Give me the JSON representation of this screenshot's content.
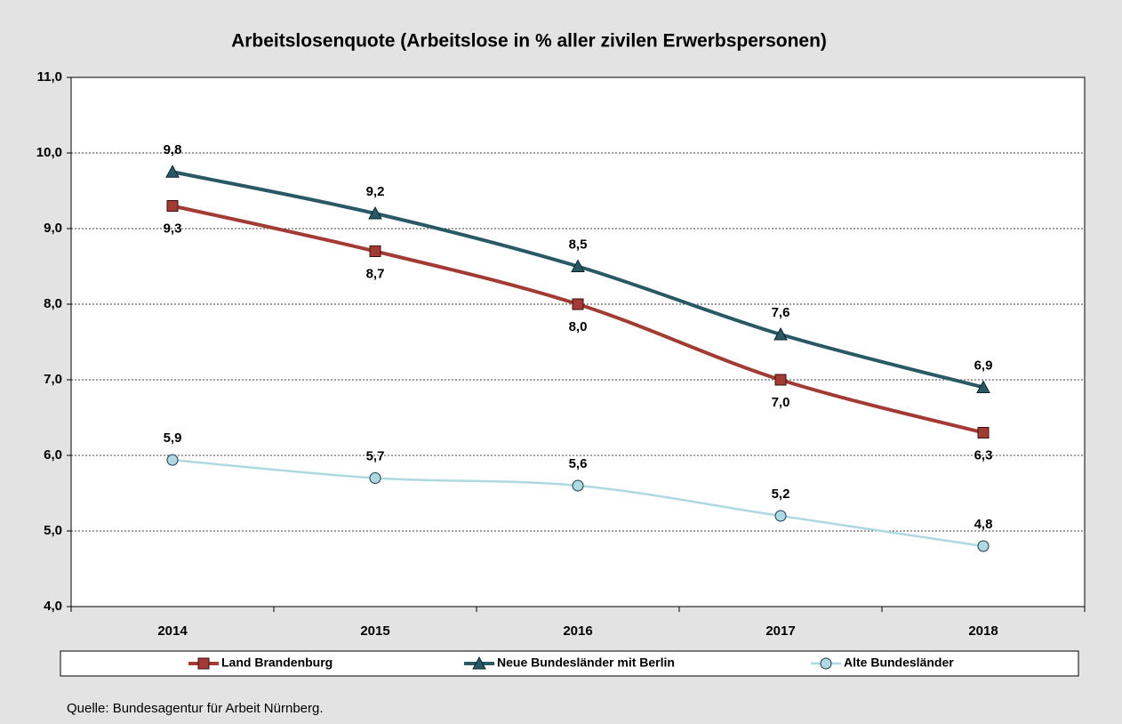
{
  "chart_data": {
    "type": "line",
    "title": "Arbeitslosenquote (Arbeitslose in % aller zivilen Erwerbspersonen)",
    "categories": [
      "2014",
      "2015",
      "2016",
      "2017",
      "2018"
    ],
    "series": [
      {
        "name": "Land Brandenburg",
        "color": "#a33b35",
        "marker": "square",
        "values": [
          9.3,
          8.7,
          8.0,
          7.0,
          6.3
        ],
        "value_labels": [
          "9,3",
          "8,7",
          "8,0",
          "7,0",
          "6,3"
        ]
      },
      {
        "name": "Neue Bundesländer mit Berlin",
        "color": "#2a5966",
        "marker": "triangle",
        "values": [
          9.75,
          9.2,
          8.5,
          7.6,
          6.9
        ],
        "value_labels": [
          "9,8",
          "9,2",
          "8,5",
          "7,6",
          "6,9"
        ]
      },
      {
        "name": "Alte Bundesländer",
        "color": "#aed8e2",
        "marker": "circle",
        "values": [
          5.94,
          5.7,
          5.6,
          5.2,
          4.8
        ],
        "value_labels": [
          "5,9",
          "5,7",
          "5,6",
          "5,2",
          "4,8"
        ]
      }
    ],
    "ylim": [
      4,
      11
    ],
    "yticks": [
      {
        "value": 4,
        "label": "4,0"
      },
      {
        "value": 5,
        "label": "5,0"
      },
      {
        "value": 6,
        "label": "6,0"
      },
      {
        "value": 7,
        "label": "7,0"
      },
      {
        "value": 8,
        "label": "8,0"
      },
      {
        "value": 9,
        "label": "9,0"
      },
      {
        "value": 10,
        "label": "10,0"
      },
      {
        "value": 11,
        "label": "11,0"
      }
    ],
    "grid": true,
    "legend": "bottom",
    "source": "Quelle: Bundesagentur für Arbeit Nürnberg."
  }
}
